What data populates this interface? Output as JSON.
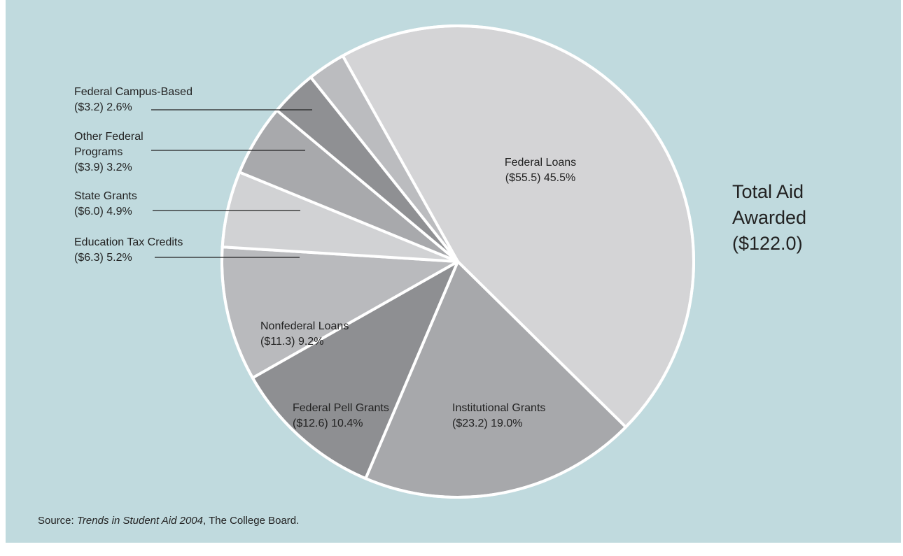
{
  "chart_data": {
    "type": "pie",
    "total": {
      "lines": [
        "Total Aid",
        "Awarded",
        "($122.0)"
      ]
    },
    "slices": [
      {
        "name": "Federal Loans",
        "amount": "($55.5)",
        "percent": 45.5,
        "label_lines": [
          "Federal Loans",
          "($55.5) 45.5%"
        ],
        "color": "#d4d4d6"
      },
      {
        "name": "Institutional Grants",
        "amount": "($23.2)",
        "percent": 19.0,
        "label_lines": [
          "Institutional Grants",
          "($23.2) 19.0%"
        ],
        "color": "#a7a8ab"
      },
      {
        "name": "Federal Pell Grants",
        "amount": "($12.6)",
        "percent": 10.4,
        "label_lines": [
          "Federal Pell Grants",
          "($12.6) 10.4%"
        ],
        "color": "#8e8f92"
      },
      {
        "name": "Nonfederal Loans",
        "amount": "($11.3)",
        "percent": 9.2,
        "label_lines": [
          "Nonfederal Loans",
          "($11.3) 9.2%"
        ],
        "color": "#b9babd"
      },
      {
        "name": "Education Tax Credits",
        "amount": "($6.3)",
        "percent": 5.2,
        "label_lines": [
          "Education Tax Credits",
          "($6.3) 5.2%"
        ],
        "color": "#d1d2d4"
      },
      {
        "name": "State Grants",
        "amount": "($6.0)",
        "percent": 4.9,
        "label_lines": [
          "State Grants",
          "($6.0) 4.9%"
        ],
        "color": "#a8a9ac"
      },
      {
        "name": "Other Federal Programs",
        "amount": "($3.9)",
        "percent": 3.2,
        "label_lines": [
          "Other Federal",
          "Programs",
          "($3.9) 3.2%"
        ],
        "color": "#8f9093"
      },
      {
        "name": "Federal Campus-Based",
        "amount": "($3.2)",
        "percent": 2.6,
        "label_lines": [
          "Federal Campus-Based",
          "($3.2) 2.6%"
        ],
        "color": "#bbbcbf"
      }
    ]
  },
  "source": {
    "prefix": "Source: ",
    "title": "Trends in Student Aid 2004",
    "suffix": ", The College Board."
  }
}
